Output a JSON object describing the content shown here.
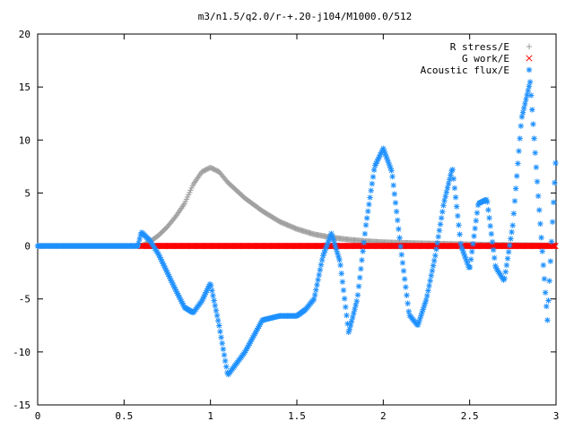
{
  "chart_data": {
    "type": "scatter",
    "title": "m3/n1.5/q2.0/r-+.20-j104/M1000.0/512",
    "xlabel": "",
    "ylabel": "",
    "xlim": [
      0,
      3
    ],
    "ylim": [
      -15,
      20
    ],
    "x_ticks": [
      "0",
      "0.5",
      "1",
      "1.5",
      "2",
      "2.5",
      "3"
    ],
    "y_ticks": [
      "-15",
      "-10",
      "-5",
      "0",
      "5",
      "10",
      "15",
      "20"
    ],
    "grid": false,
    "legend_position": "top-right",
    "series": [
      {
        "name": "R stress/E",
        "marker": "plus",
        "color": "#a0a0a0",
        "x": [
          0.0,
          0.6,
          0.65,
          0.7,
          0.75,
          0.8,
          0.85,
          0.9,
          0.95,
          1.0,
          1.05,
          1.1,
          1.2,
          1.3,
          1.4,
          1.5,
          1.6,
          1.7,
          1.8,
          1.9,
          2.0,
          2.2,
          2.4,
          2.6,
          2.8,
          3.0
        ],
        "y": [
          0.0,
          0.0,
          0.4,
          1.0,
          1.8,
          2.8,
          4.0,
          5.8,
          7.0,
          7.4,
          7.0,
          6.0,
          4.5,
          3.3,
          2.3,
          1.6,
          1.1,
          0.8,
          0.6,
          0.45,
          0.35,
          0.25,
          0.18,
          0.12,
          0.08,
          0.05
        ]
      },
      {
        "name": "G work/E",
        "marker": "cross",
        "color": "#ff0000",
        "x": [
          0.6,
          3.0
        ],
        "y": [
          0.0,
          0.0
        ]
      },
      {
        "name": "Acoustic flux/E",
        "marker": "star",
        "color": "#1e90ff",
        "x": [
          0.0,
          0.58,
          0.6,
          0.65,
          0.7,
          0.75,
          0.8,
          0.85,
          0.9,
          0.95,
          1.0,
          1.05,
          1.1,
          1.2,
          1.3,
          1.4,
          1.5,
          1.55,
          1.6,
          1.65,
          1.7,
          1.75,
          1.8,
          1.85,
          1.9,
          1.95,
          2.0,
          2.05,
          2.1,
          2.15,
          2.2,
          2.25,
          2.3,
          2.35,
          2.4,
          2.45,
          2.5,
          2.55,
          2.6,
          2.65,
          2.7,
          2.75,
          2.8,
          2.85,
          2.9,
          2.95,
          3.0
        ],
        "y": [
          0.0,
          0.0,
          1.3,
          0.5,
          -0.8,
          -2.5,
          -4.2,
          -5.8,
          -6.3,
          -5.2,
          -3.5,
          -7.5,
          -12.2,
          -10.0,
          -7.0,
          -6.6,
          -6.6,
          -6.0,
          -5.0,
          -1.0,
          1.2,
          -1.5,
          -8.2,
          -5.0,
          2.0,
          7.5,
          9.2,
          7.0,
          0.0,
          -6.5,
          -7.5,
          -5.0,
          -1.0,
          4.0,
          7.4,
          0.0,
          -2.2,
          4.0,
          4.4,
          -2.0,
          -3.3,
          2.0,
          12.0,
          15.5,
          4.0,
          -7.0,
          8.7
        ]
      }
    ]
  }
}
